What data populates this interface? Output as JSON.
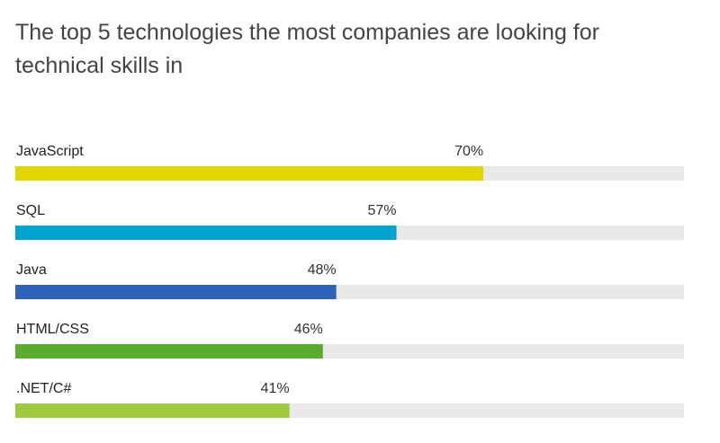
{
  "title": "The top 5 technologies the most companies are looking for technical skills in",
  "chart_data": {
    "type": "bar",
    "orientation": "horizontal",
    "title": "The top 5 technologies the most companies are looking for technical skills in",
    "categories": [
      "JavaScript",
      "SQL",
      "Java",
      "HTML/CSS",
      ".NET/C#"
    ],
    "values": [
      70,
      57,
      48,
      46,
      41
    ],
    "value_labels": [
      "70%",
      "57%",
      "48%",
      "46%",
      "41%"
    ],
    "colors": [
      "#e2d600",
      "#00a2cf",
      "#2e62b8",
      "#5aac2c",
      "#9fc93f"
    ],
    "track_color": "#e9e9e9",
    "xlim": [
      0,
      100
    ],
    "grid": false,
    "legend": "none"
  }
}
